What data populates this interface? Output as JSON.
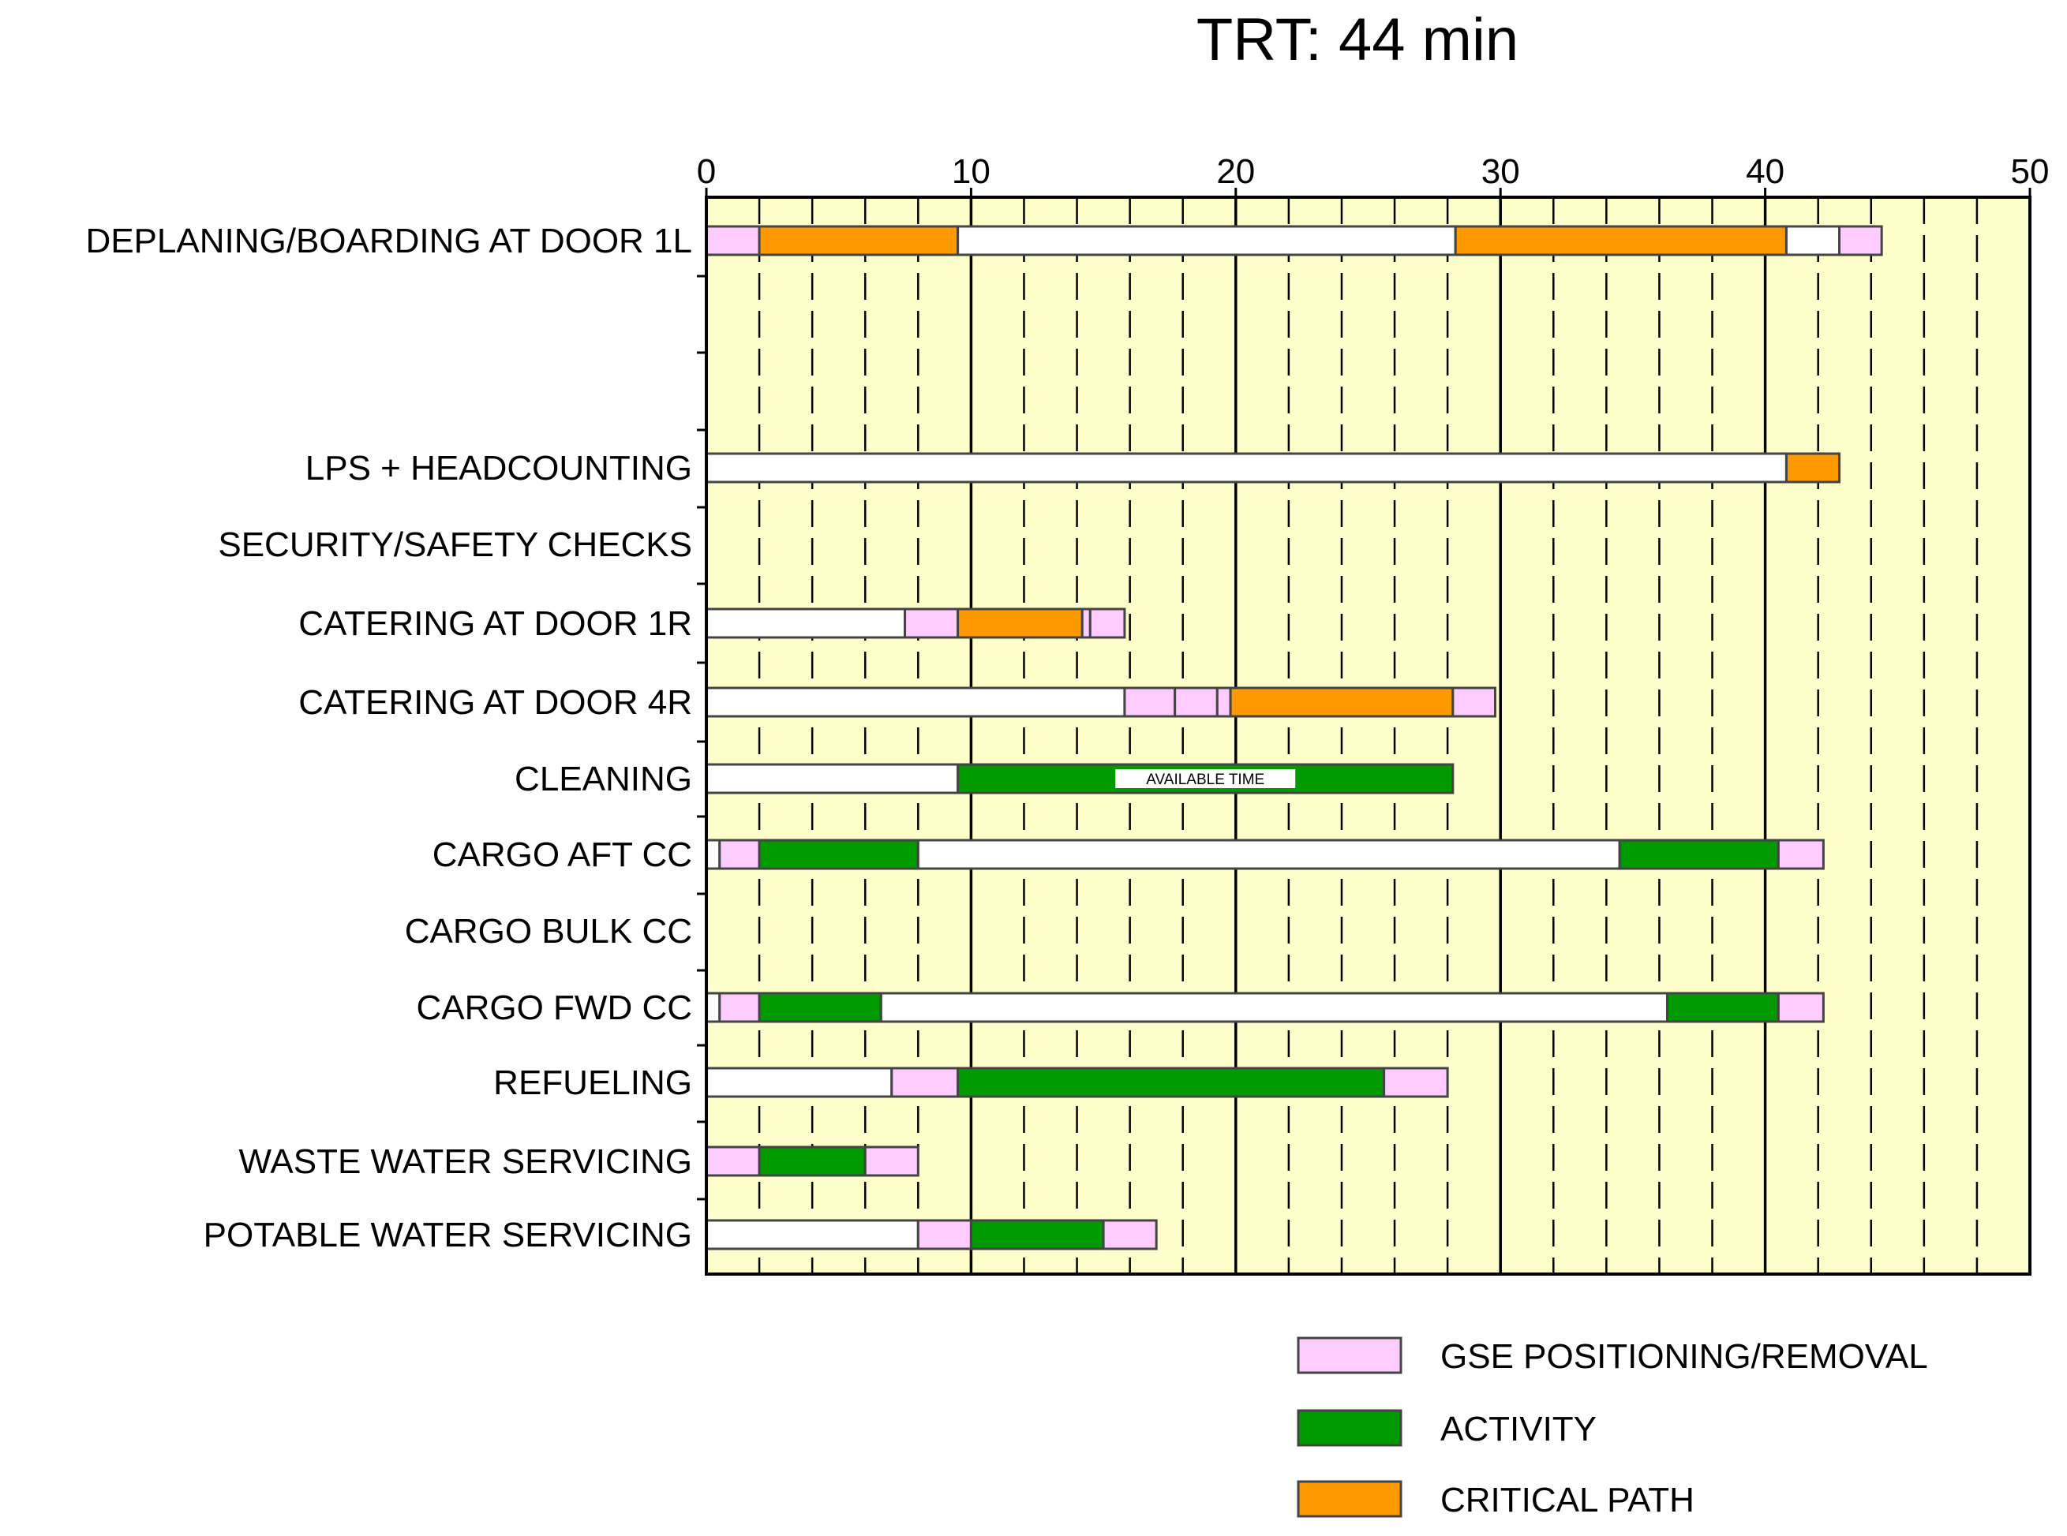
{
  "chart_data": {
    "type": "gantt",
    "title": "TRT: 44 min",
    "xlabel": "",
    "ylabel": "",
    "xlim": [
      0,
      50
    ],
    "x_ticks": [
      0,
      10,
      20,
      30,
      40,
      50
    ],
    "grid": "dashed vertical every 2 min, solid every 10 min",
    "background_color": "#FFFFCC",
    "legend_position": "bottom-right",
    "colors": {
      "idle": "#FFFFFF",
      "gse": "#FFCCFF",
      "activity": "#009900",
      "critical": "#FF9900"
    },
    "legend": [
      {
        "key": "gse",
        "label": "GSE POSITIONING/REMOVAL"
      },
      {
        "key": "activity",
        "label": "ACTIVITY"
      },
      {
        "key": "critical",
        "label": "CRITICAL PATH"
      }
    ],
    "tasks": [
      {
        "label": "DEPLANING/BOARDING AT DOOR 1L",
        "segments": [
          {
            "start": 0,
            "end": 2,
            "kind": "gse"
          },
          {
            "start": 2,
            "end": 9.5,
            "kind": "critical"
          },
          {
            "start": 9.5,
            "end": 28.3,
            "kind": "idle"
          },
          {
            "start": 28.3,
            "end": 40.8,
            "kind": "critical"
          },
          {
            "start": 40.8,
            "end": 42.8,
            "kind": "idle"
          },
          {
            "start": 42.8,
            "end": 44.4,
            "kind": "gse"
          }
        ]
      },
      {
        "label": "",
        "segments": []
      },
      {
        "label": "",
        "segments": []
      },
      {
        "label": "LPS + HEADCOUNTING",
        "segments": [
          {
            "start": 0,
            "end": 40.8,
            "kind": "idle"
          },
          {
            "start": 40.8,
            "end": 42.8,
            "kind": "critical"
          }
        ]
      },
      {
        "label": "SECURITY/SAFETY CHECKS",
        "segments": []
      },
      {
        "label": "CATERING AT DOOR 1R",
        "segments": [
          {
            "start": 0,
            "end": 7.5,
            "kind": "idle"
          },
          {
            "start": 7.5,
            "end": 9.5,
            "kind": "gse"
          },
          {
            "start": 9.5,
            "end": 14.2,
            "kind": "critical"
          },
          {
            "start": 14.2,
            "end": 14.5,
            "kind": "gse"
          },
          {
            "start": 14.5,
            "end": 15.8,
            "kind": "gse"
          }
        ]
      },
      {
        "label": "CATERING AT DOOR 4R",
        "segments": [
          {
            "start": 0,
            "end": 15.8,
            "kind": "idle"
          },
          {
            "start": 15.8,
            "end": 17.7,
            "kind": "gse"
          },
          {
            "start": 17.7,
            "end": 19.3,
            "kind": "gse"
          },
          {
            "start": 19.3,
            "end": 19.8,
            "kind": "gse"
          },
          {
            "start": 19.8,
            "end": 28.2,
            "kind": "critical"
          },
          {
            "start": 28.2,
            "end": 29.8,
            "kind": "gse"
          }
        ]
      },
      {
        "label": "CLEANING",
        "annotation": "AVAILABLE TIME",
        "segments": [
          {
            "start": 0,
            "end": 9.5,
            "kind": "idle"
          },
          {
            "start": 9.5,
            "end": 28.2,
            "kind": "activity"
          }
        ]
      },
      {
        "label": "CARGO AFT CC",
        "segments": [
          {
            "start": 0,
            "end": 0.5,
            "kind": "idle"
          },
          {
            "start": 0.5,
            "end": 2,
            "kind": "gse"
          },
          {
            "start": 2,
            "end": 8,
            "kind": "activity"
          },
          {
            "start": 8,
            "end": 34.5,
            "kind": "idle"
          },
          {
            "start": 34.5,
            "end": 40.5,
            "kind": "activity"
          },
          {
            "start": 40.5,
            "end": 42.2,
            "kind": "gse"
          }
        ]
      },
      {
        "label": "CARGO BULK CC",
        "segments": []
      },
      {
        "label": "CARGO FWD CC",
        "segments": [
          {
            "start": 0,
            "end": 0.5,
            "kind": "idle"
          },
          {
            "start": 0.5,
            "end": 2,
            "kind": "gse"
          },
          {
            "start": 2,
            "end": 6.6,
            "kind": "activity"
          },
          {
            "start": 6.6,
            "end": 36.3,
            "kind": "idle"
          },
          {
            "start": 36.3,
            "end": 40.5,
            "kind": "activity"
          },
          {
            "start": 40.5,
            "end": 42.2,
            "kind": "gse"
          }
        ]
      },
      {
        "label": "REFUELING",
        "segments": [
          {
            "start": 0,
            "end": 7,
            "kind": "idle"
          },
          {
            "start": 7,
            "end": 9.5,
            "kind": "gse"
          },
          {
            "start": 9.5,
            "end": 25.6,
            "kind": "activity"
          },
          {
            "start": 25.6,
            "end": 28,
            "kind": "gse"
          }
        ]
      },
      {
        "label": "WASTE WATER SERVICING",
        "segments": [
          {
            "start": 0,
            "end": 2,
            "kind": "gse"
          },
          {
            "start": 2,
            "end": 6,
            "kind": "activity"
          },
          {
            "start": 6,
            "end": 8,
            "kind": "gse"
          }
        ]
      },
      {
        "label": "POTABLE WATER SERVICING",
        "segments": [
          {
            "start": 0,
            "end": 8,
            "kind": "idle"
          },
          {
            "start": 8,
            "end": 10,
            "kind": "gse"
          },
          {
            "start": 10,
            "end": 15,
            "kind": "activity"
          },
          {
            "start": 15,
            "end": 17,
            "kind": "gse"
          }
        ]
      }
    ]
  }
}
